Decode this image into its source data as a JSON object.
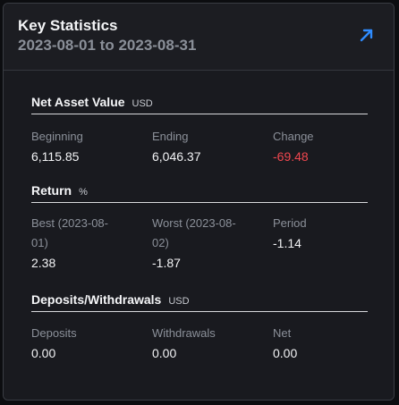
{
  "header": {
    "title": "Key Statistics",
    "date_range": "2023-08-01 to 2023-08-31",
    "expand_icon": "arrow-up-right-icon",
    "accent": "#2f8cff"
  },
  "nav": {
    "title": "Net Asset Value",
    "unit": "USD",
    "beginning_label": "Beginning",
    "beginning_value": "6,115.85",
    "ending_label": "Ending",
    "ending_value": "6,046.37",
    "change_label": "Change",
    "change_value": "-69.48"
  },
  "return": {
    "title": "Return",
    "unit": "%",
    "best_label_1": "Best (2023-08-",
    "best_label_2": "01)",
    "best_value": "2.38",
    "worst_label_1": "Worst (2023-08-",
    "worst_label_2": "02)",
    "worst_value": "-1.87",
    "period_label": "Period",
    "period_value": "-1.14"
  },
  "deposits": {
    "title": "Deposits/Withdrawals",
    "unit": "USD",
    "deposits_label": "Deposits",
    "deposits_value": "0.00",
    "withdrawals_label": "Withdrawals",
    "withdrawals_value": "0.00",
    "net_label": "Net",
    "net_value": "0.00"
  },
  "colors": {
    "negative": "#f0474f",
    "background": "#1c1d22"
  }
}
